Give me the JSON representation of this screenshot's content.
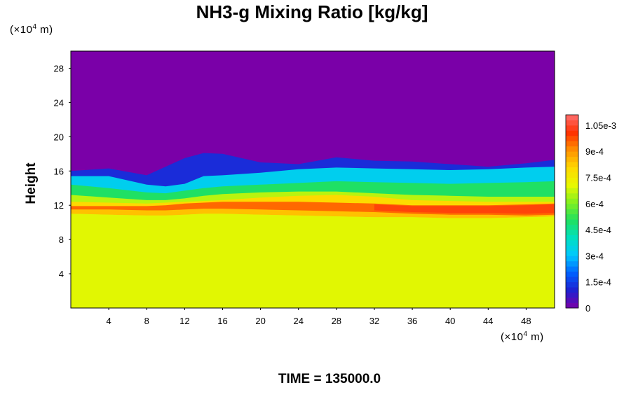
{
  "chart_data": {
    "type": "heatmap",
    "title": "NH3-g Mixing Ratio [kg/kg]",
    "ylabel": "Height",
    "x_unit": {
      "prefix": "(×10",
      "exp": "4",
      "suffix": " m)"
    },
    "y_unit": {
      "prefix": "(×10",
      "exp": "4",
      "suffix": " m)"
    },
    "xlim": [
      0,
      51
    ],
    "ylim": [
      0,
      30
    ],
    "x_ticks": [
      4,
      8,
      12,
      16,
      20,
      24,
      28,
      32,
      36,
      40,
      44,
      48
    ],
    "y_ticks": [
      4,
      8,
      12,
      16,
      20,
      24,
      28
    ],
    "colorbar": {
      "min": 0,
      "max": 0.00111,
      "tick_values": [
        0,
        0.00015,
        0.0003,
        0.00045,
        0.0006,
        0.00075,
        0.0009,
        0.00105
      ],
      "tick_labels": [
        "0",
        "1.5e-4",
        "3e-4",
        "4.5e-4",
        "6e-4",
        "7.5e-4",
        "9e-4",
        "1.05e-3"
      ]
    },
    "field": {
      "uniform_above": 0,
      "layer_boundaries_height": [
        {
          "name": "top",
          "x": [
            0,
            4,
            8,
            10,
            12,
            14,
            16,
            20,
            24,
            28,
            32,
            36,
            40,
            44,
            48,
            51
          ],
          "y": [
            16.0,
            16.3,
            15.5,
            16.5,
            17.5,
            18.1,
            18.0,
            17.0,
            16.8,
            17.6,
            17.2,
            17.1,
            16.8,
            16.5,
            16.9,
            17.3
          ]
        },
        {
          "name": "cyan",
          "x": [
            0,
            4,
            8,
            10,
            12,
            14,
            16,
            20,
            24,
            28,
            32,
            36,
            40,
            44,
            48,
            51
          ],
          "y": [
            15.4,
            15.4,
            14.4,
            14.2,
            14.5,
            15.4,
            15.5,
            15.8,
            16.2,
            16.4,
            16.3,
            16.2,
            16.1,
            16.2,
            16.4,
            16.5
          ]
        },
        {
          "name": "green",
          "x": [
            0,
            4,
            8,
            10,
            12,
            14,
            16,
            20,
            24,
            28,
            32,
            36,
            40,
            44,
            48,
            51
          ],
          "y": [
            14.4,
            14.0,
            13.5,
            13.4,
            13.7,
            14.0,
            14.2,
            14.4,
            14.6,
            14.8,
            14.7,
            14.6,
            14.5,
            14.6,
            14.7,
            14.8
          ]
        },
        {
          "name": "yellow",
          "x": [
            0,
            4,
            8,
            10,
            12,
            14,
            16,
            20,
            24,
            28,
            32,
            36,
            40,
            44,
            48,
            51
          ],
          "y": [
            13.2,
            12.9,
            12.6,
            12.6,
            12.8,
            13.1,
            13.3,
            13.5,
            13.6,
            13.6,
            13.4,
            13.2,
            13.1,
            13.0,
            13.0,
            13.0
          ]
        },
        {
          "name": "orange-top",
          "x": [
            0,
            4,
            8,
            10,
            12,
            14,
            16,
            20,
            24,
            28,
            32,
            36,
            40,
            44,
            48,
            51
          ],
          "y": [
            12.4,
            12.3,
            12.2,
            12.3,
            12.4,
            12.5,
            12.6,
            12.9,
            13.1,
            13.2,
            13.0,
            12.6,
            12.5,
            12.4,
            12.4,
            12.4
          ]
        },
        {
          "name": "red-band-top",
          "x": [
            0,
            4,
            8,
            10,
            12,
            14,
            16,
            20,
            24,
            28,
            32,
            36,
            40,
            44,
            48,
            51
          ],
          "y": [
            11.9,
            11.9,
            11.9,
            12.0,
            12.2,
            12.3,
            12.4,
            12.4,
            12.4,
            12.3,
            12.2,
            12.0,
            12.0,
            12.0,
            12.1,
            12.2
          ]
        },
        {
          "name": "red-band-bottom",
          "x": [
            0,
            4,
            8,
            10,
            12,
            14,
            16,
            20,
            24,
            28,
            32,
            36,
            40,
            44,
            48,
            51
          ],
          "y": [
            11.5,
            11.5,
            11.4,
            11.4,
            11.5,
            11.6,
            11.6,
            11.5,
            11.4,
            11.3,
            11.2,
            11.0,
            10.9,
            10.9,
            10.8,
            10.9
          ]
        },
        {
          "name": "orange-bottom",
          "x": [
            0,
            4,
            8,
            10,
            12,
            14,
            16,
            20,
            24,
            28,
            32,
            36,
            40,
            44,
            48,
            51
          ],
          "y": [
            11.0,
            10.9,
            10.8,
            10.8,
            10.9,
            11.0,
            11.0,
            10.9,
            10.8,
            10.7,
            10.6,
            10.6,
            10.5,
            10.5,
            10.6,
            10.7
          ]
        }
      ],
      "layer_values": [
        0,
        0.00012,
        0.00033,
        0.0005,
        0.00066,
        0.0008,
        0.00095,
        0.00084,
        0.0007
      ],
      "streak": {
        "x": [
          32,
          51
        ],
        "value": 0.00102
      }
    }
  },
  "footer": {
    "time_label": "TIME = 135000.0"
  },
  "colors": {
    "background": "#ffffff",
    "palette": [
      "#7a00a8",
      "#2020d0",
      "#0060ff",
      "#00c8ff",
      "#00e0c0",
      "#20e060",
      "#80f020",
      "#e8f800",
      "#ffd800",
      "#ff9000",
      "#ff3000",
      "#ff7070"
    ]
  }
}
